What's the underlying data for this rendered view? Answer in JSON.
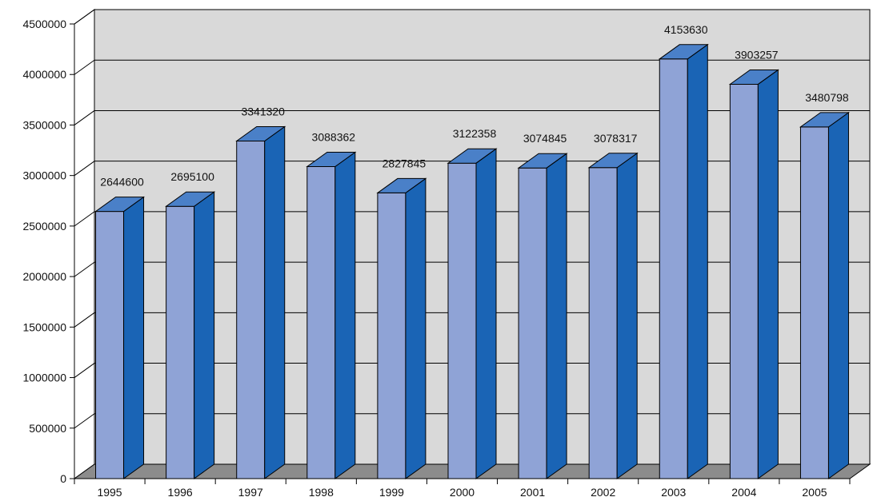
{
  "chart_data": {
    "type": "bar",
    "title": "",
    "xlabel": "",
    "ylabel": "",
    "categories": [
      "1995",
      "1996",
      "1997",
      "1998",
      "1999",
      "2000",
      "2001",
      "2002",
      "2003",
      "2004",
      "2005"
    ],
    "values": [
      2644600,
      2695100,
      3341320,
      3088362,
      2827845,
      3122358,
      3074845,
      3078317,
      4153630,
      3903257,
      3480798
    ],
    "data_labels": [
      "2644600",
      "2695100",
      "3341320",
      "3088362",
      "2827845",
      "3122358",
      "3074845",
      "3078317",
      "4153630",
      "3903257",
      "3480798"
    ],
    "ylim": [
      0,
      4500000
    ],
    "yticks": [
      0,
      500000,
      1000000,
      1500000,
      2000000,
      2500000,
      3000000,
      3500000,
      4000000,
      4500000
    ],
    "ytick_labels": [
      "0",
      "500000",
      "1000000",
      "1500000",
      "2000000",
      "2500000",
      "3000000",
      "3500000",
      "4000000",
      "4500000"
    ],
    "grid": true,
    "legend": "none",
    "style": "3d-columns",
    "colors": {
      "bar_front": "#8fa3d6",
      "bar_side": "#1a64b5",
      "bar_top": "#4a80c8",
      "back_wall": "#d9d9d9",
      "floor": "#8c8c8c",
      "gridline": "#000000"
    }
  }
}
